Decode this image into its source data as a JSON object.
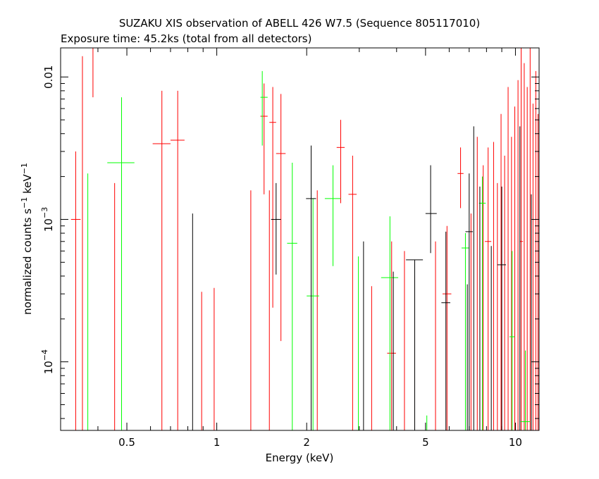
{
  "chart_data": {
    "type": "scatter",
    "title": "SUZAKU XIS observation of ABELL 426 W7.5 (Sequence 805117010)",
    "subtitle": "Exposure time: 45.2ks (total from all detectors)",
    "xlabel": "Energy (keV)",
    "ylabel_base": "normalized counts s",
    "ylabel_exp1": "−1",
    "ylabel_mid": " keV",
    "ylabel_exp2": "−1",
    "xscale": "log",
    "yscale": "log",
    "xlim": [
      0.3,
      12.0
    ],
    "ylim": [
      3.3e-05,
      0.016
    ],
    "x_ticks": [
      {
        "value": 0.5,
        "label": "0.5"
      },
      {
        "value": 1,
        "label": "1"
      },
      {
        "value": 2,
        "label": "2"
      },
      {
        "value": 5,
        "label": "5"
      },
      {
        "value": 10,
        "label": "10"
      }
    ],
    "y_ticks": [
      {
        "value": 0.01,
        "base": "0.01",
        "exp": ""
      },
      {
        "value": 0.001,
        "base": "10",
        "exp": "−3"
      },
      {
        "value": 0.0001,
        "base": "10",
        "exp": "−4"
      }
    ],
    "colors": {
      "black": "#000000",
      "red": "#ff0000",
      "green": "#00ff00"
    },
    "series": [
      {
        "color": "#ff0000",
        "points": [
          {
            "x": 0.337,
            "y": 0.001,
            "xlo": 0.325,
            "xhi": 0.35,
            "ylo": 3.3e-05,
            "yhi": 0.003
          },
          {
            "x": 0.355,
            "y": 3.3e-05,
            "xlo": 0.355,
            "xhi": 0.355,
            "ylo": 3.3e-05,
            "yhi": 0.014
          },
          {
            "x": 0.385,
            "y": 0.016,
            "xlo": 0.37,
            "xhi": 0.4,
            "ylo": 0.0072,
            "yhi": 0.016
          },
          {
            "x": 0.455,
            "y": 3.3e-05,
            "xlo": 0.455,
            "xhi": 0.455,
            "ylo": 3.3e-05,
            "yhi": 0.0018
          },
          {
            "x": 0.655,
            "y": 0.0034,
            "xlo": 0.61,
            "xhi": 0.7,
            "ylo": 3.3e-05,
            "yhi": 0.008
          },
          {
            "x": 0.74,
            "y": 0.0036,
            "xlo": 0.7,
            "xhi": 0.78,
            "ylo": 3.3e-05,
            "yhi": 0.008
          },
          {
            "x": 0.89,
            "y": 3.3e-05,
            "xlo": 0.89,
            "xhi": 0.89,
            "ylo": 3.3e-05,
            "yhi": 0.00031
          },
          {
            "x": 0.98,
            "y": 3.3e-05,
            "xlo": 0.98,
            "xhi": 0.98,
            "ylo": 3.3e-05,
            "yhi": 0.00033
          },
          {
            "x": 1.3,
            "y": 3.3e-05,
            "xlo": 1.3,
            "xhi": 1.3,
            "ylo": 3.3e-05,
            "yhi": 0.0016
          },
          {
            "x": 1.44,
            "y": 0.0053,
            "xlo": 1.4,
            "xhi": 1.48,
            "ylo": 0.0015,
            "yhi": 0.009
          },
          {
            "x": 1.54,
            "y": 0.0048,
            "xlo": 1.5,
            "xhi": 1.58,
            "ylo": 0.00024,
            "yhi": 0.0085
          },
          {
            "x": 1.64,
            "y": 0.0029,
            "xlo": 1.58,
            "xhi": 1.7,
            "ylo": 0.00014,
            "yhi": 0.0076
          },
          {
            "x": 1.5,
            "y": 3.3e-05,
            "xlo": 1.5,
            "xhi": 1.5,
            "ylo": 3.3e-05,
            "yhi": 0.0016
          },
          {
            "x": 2.17,
            "y": 3.3e-05,
            "xlo": 2.17,
            "xhi": 2.17,
            "ylo": 3.3e-05,
            "yhi": 0.0016
          },
          {
            "x": 2.6,
            "y": 0.0032,
            "xlo": 2.52,
            "xhi": 2.68,
            "ylo": 0.0013,
            "yhi": 0.005
          },
          {
            "x": 2.85,
            "y": 0.0015,
            "xlo": 2.76,
            "xhi": 2.94,
            "ylo": 3.3e-05,
            "yhi": 0.0028
          },
          {
            "x": 3.3,
            "y": 3.3e-05,
            "xlo": 3.3,
            "xhi": 3.3,
            "ylo": 3.3e-05,
            "yhi": 0.00034
          },
          {
            "x": 3.85,
            "y": 0.000115,
            "xlo": 3.72,
            "xhi": 3.98,
            "ylo": 3.3e-05,
            "yhi": 0.0007
          },
          {
            "x": 4.25,
            "y": 3.3e-05,
            "xlo": 4.25,
            "xhi": 4.25,
            "ylo": 3.3e-05,
            "yhi": 0.0006
          },
          {
            "x": 4.6,
            "y": 3.3e-05,
            "xlo": 4.6,
            "xhi": 4.6,
            "ylo": 3.3e-05,
            "yhi": 0.0004
          },
          {
            "x": 5.4,
            "y": 3.3e-05,
            "xlo": 5.4,
            "xhi": 5.4,
            "ylo": 3.3e-05,
            "yhi": 0.0007
          },
          {
            "x": 5.9,
            "y": 0.0003,
            "xlo": 5.7,
            "xhi": 6.1,
            "ylo": 3.3e-05,
            "yhi": 0.0009
          },
          {
            "x": 6.55,
            "y": 0.0021,
            "xlo": 6.4,
            "xhi": 6.7,
            "ylo": 0.0012,
            "yhi": 0.0032
          },
          {
            "x": 7.1,
            "y": 3.3e-05,
            "xlo": 7.1,
            "xhi": 7.1,
            "ylo": 3.3e-05,
            "yhi": 0.0011
          },
          {
            "x": 7.45,
            "y": 3.3e-05,
            "xlo": 7.45,
            "xhi": 7.45,
            "ylo": 3.3e-05,
            "yhi": 0.0038
          },
          {
            "x": 7.8,
            "y": 3.3e-05,
            "xlo": 7.8,
            "xhi": 7.8,
            "ylo": 3.3e-05,
            "yhi": 0.0024
          },
          {
            "x": 8.1,
            "y": 0.0007,
            "xlo": 7.9,
            "xhi": 8.3,
            "ylo": 3.3e-05,
            "yhi": 0.0032
          },
          {
            "x": 8.45,
            "y": 3.3e-05,
            "xlo": 8.45,
            "xhi": 8.45,
            "ylo": 3.3e-05,
            "yhi": 0.0035
          },
          {
            "x": 8.7,
            "y": 3.3e-05,
            "xlo": 8.7,
            "xhi": 8.7,
            "ylo": 3.3e-05,
            "yhi": 0.0018
          },
          {
            "x": 8.95,
            "y": 3.3e-05,
            "xlo": 8.95,
            "xhi": 8.95,
            "ylo": 3.3e-05,
            "yhi": 0.0055
          },
          {
            "x": 9.2,
            "y": 3.3e-05,
            "xlo": 9.2,
            "xhi": 9.2,
            "ylo": 3.3e-05,
            "yhi": 0.0028
          },
          {
            "x": 9.45,
            "y": 3.3e-05,
            "xlo": 9.45,
            "xhi": 9.45,
            "ylo": 3.3e-05,
            "yhi": 0.0085
          },
          {
            "x": 9.7,
            "y": 3.3e-05,
            "xlo": 9.7,
            "xhi": 9.7,
            "ylo": 3.3e-05,
            "yhi": 0.0038
          },
          {
            "x": 9.95,
            "y": 3.3e-05,
            "xlo": 9.95,
            "xhi": 9.95,
            "ylo": 3.3e-05,
            "yhi": 0.0062
          },
          {
            "x": 10.2,
            "y": 3.3e-05,
            "xlo": 10.2,
            "xhi": 10.2,
            "ylo": 3.3e-05,
            "yhi": 0.0095
          },
          {
            "x": 10.45,
            "y": 0.0007,
            "xlo": 10.35,
            "xhi": 10.6,
            "ylo": 3.3e-05,
            "yhi": 0.016
          },
          {
            "x": 10.7,
            "y": 3.3e-05,
            "xlo": 10.7,
            "xhi": 10.7,
            "ylo": 3.3e-05,
            "yhi": 0.0125
          },
          {
            "x": 10.95,
            "y": 3.3e-05,
            "xlo": 10.95,
            "xhi": 10.95,
            "ylo": 3.3e-05,
            "yhi": 0.0085
          },
          {
            "x": 11.2,
            "y": 3.3e-05,
            "xlo": 11.2,
            "xhi": 11.2,
            "ylo": 3.3e-05,
            "yhi": 0.016
          },
          {
            "x": 11.45,
            "y": 3.3e-05,
            "xlo": 11.45,
            "xhi": 11.45,
            "ylo": 3.3e-05,
            "yhi": 0.0065
          },
          {
            "x": 11.7,
            "y": 3.3e-05,
            "xlo": 11.7,
            "xhi": 11.7,
            "ylo": 3.3e-05,
            "yhi": 0.011
          },
          {
            "x": 11.9,
            "y": 3.3e-05,
            "xlo": 11.9,
            "xhi": 11.9,
            "ylo": 3.3e-05,
            "yhi": 0.0055
          }
        ]
      },
      {
        "color": "#00ff00",
        "points": [
          {
            "x": 0.37,
            "y": 3.3e-05,
            "xlo": 0.37,
            "xhi": 0.37,
            "ylo": 3.3e-05,
            "yhi": 0.0021
          },
          {
            "x": 0.48,
            "y": 0.0025,
            "xlo": 0.43,
            "xhi": 0.53,
            "ylo": 3.3e-05,
            "yhi": 0.0072
          },
          {
            "x": 1.42,
            "y": 0.0072,
            "xlo": 1.4,
            "xhi": 1.48,
            "ylo": 0.0033,
            "yhi": 0.011
          },
          {
            "x": 1.79,
            "y": 0.00068,
            "xlo": 1.72,
            "xhi": 1.86,
            "ylo": 3.3e-05,
            "yhi": 0.0025
          },
          {
            "x": 2.1,
            "y": 0.00029,
            "xlo": 2.0,
            "xhi": 2.2,
            "ylo": 3.3e-05,
            "yhi": 0.0014
          },
          {
            "x": 2.45,
            "y": 0.0014,
            "xlo": 2.3,
            "xhi": 2.6,
            "ylo": 0.00047,
            "yhi": 0.0024
          },
          {
            "x": 2.98,
            "y": 3.3e-05,
            "xlo": 2.98,
            "xhi": 2.98,
            "ylo": 3.3e-05,
            "yhi": 0.00055
          },
          {
            "x": 3.8,
            "y": 0.00039,
            "xlo": 3.55,
            "xhi": 4.05,
            "ylo": 3.3e-05,
            "yhi": 0.00105
          },
          {
            "x": 5.05,
            "y": 3.3e-05,
            "xlo": 5.05,
            "xhi": 5.05,
            "ylo": 3.3e-05,
            "yhi": 4.2e-05
          },
          {
            "x": 6.8,
            "y": 0.00063,
            "xlo": 6.6,
            "xhi": 7.0,
            "ylo": 3.3e-05,
            "yhi": 0.0008
          },
          {
            "x": 7.75,
            "y": 0.0013,
            "xlo": 7.55,
            "xhi": 7.95,
            "ylo": 3.3e-05,
            "yhi": 0.002
          },
          {
            "x": 9.75,
            "y": 0.00015,
            "xlo": 9.55,
            "xhi": 9.95,
            "ylo": 3.3e-05,
            "yhi": 0.0006
          },
          {
            "x": 10.8,
            "y": 3.8e-05,
            "xlo": 10.4,
            "xhi": 11.2,
            "ylo": 3.3e-05,
            "yhi": 0.00012
          }
        ]
      },
      {
        "color": "#000000",
        "points": [
          {
            "x": 0.83,
            "y": 3.3e-05,
            "xlo": 0.83,
            "xhi": 0.83,
            "ylo": 3.3e-05,
            "yhi": 0.0011
          },
          {
            "x": 1.58,
            "y": 0.001,
            "xlo": 1.52,
            "xhi": 1.64,
            "ylo": 0.00041,
            "yhi": 0.0018
          },
          {
            "x": 2.07,
            "y": 0.0014,
            "xlo": 1.99,
            "xhi": 2.15,
            "ylo": 3.3e-05,
            "yhi": 0.0033
          },
          {
            "x": 3.1,
            "y": 3.3e-05,
            "xlo": 3.1,
            "xhi": 3.1,
            "ylo": 3.3e-05,
            "yhi": 0.0007
          },
          {
            "x": 3.9,
            "y": 3.3e-05,
            "xlo": 3.9,
            "xhi": 3.9,
            "ylo": 3.3e-05,
            "yhi": 0.00043
          },
          {
            "x": 4.6,
            "y": 0.00052,
            "xlo": 4.3,
            "xhi": 4.9,
            "ylo": 3.3e-05,
            "yhi": 0.00052
          },
          {
            "x": 5.2,
            "y": 0.0011,
            "xlo": 5.0,
            "xhi": 5.45,
            "ylo": 0.00058,
            "yhi": 0.0024
          },
          {
            "x": 5.85,
            "y": 0.00026,
            "xlo": 5.65,
            "xhi": 6.05,
            "ylo": 3.3e-05,
            "yhi": 0.00082
          },
          {
            "x": 6.9,
            "y": 3.3e-05,
            "xlo": 6.9,
            "xhi": 6.9,
            "ylo": 3.3e-05,
            "yhi": 0.00035
          },
          {
            "x": 7.0,
            "y": 0.00082,
            "xlo": 6.8,
            "xhi": 7.2,
            "ylo": 3.3e-05,
            "yhi": 0.0021
          },
          {
            "x": 7.25,
            "y": 3.3e-05,
            "xlo": 7.25,
            "xhi": 7.25,
            "ylo": 3.3e-05,
            "yhi": 0.0045
          },
          {
            "x": 7.6,
            "y": 3.3e-05,
            "xlo": 7.6,
            "xhi": 7.6,
            "ylo": 3.3e-05,
            "yhi": 0.0017
          },
          {
            "x": 8.3,
            "y": 3.3e-05,
            "xlo": 8.3,
            "xhi": 8.3,
            "ylo": 3.3e-05,
            "yhi": 0.00065
          },
          {
            "x": 9.0,
            "y": 0.00048,
            "xlo": 8.7,
            "xhi": 9.3,
            "ylo": 3.3e-05,
            "yhi": 0.0017
          },
          {
            "x": 10.35,
            "y": 3.3e-05,
            "xlo": 10.35,
            "xhi": 10.35,
            "ylo": 3.3e-05,
            "yhi": 0.0045
          },
          {
            "x": 11.3,
            "y": 3.3e-05,
            "xlo": 11.3,
            "xhi": 11.3,
            "ylo": 3.3e-05,
            "yhi": 0.0015
          }
        ]
      }
    ],
    "legend": "none",
    "grid": false
  }
}
